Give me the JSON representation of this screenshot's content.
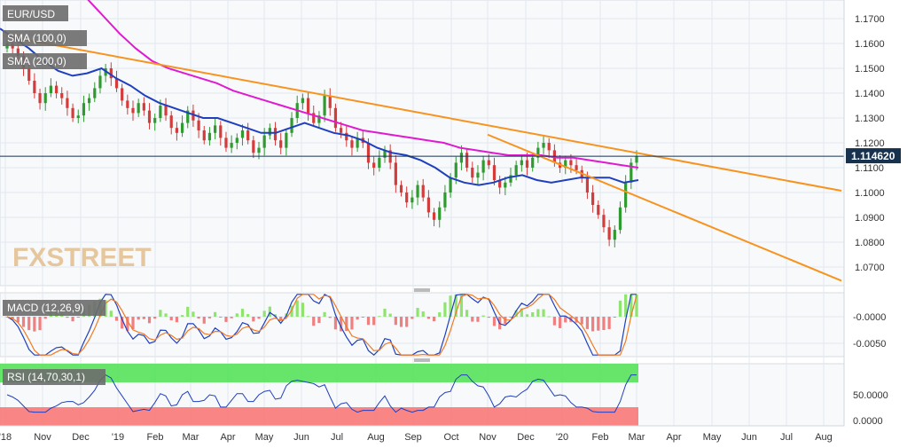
{
  "chart_data": [
    {
      "type": "candlestick",
      "symbol": "EUR/USD",
      "price_label": "1.114620",
      "y_ticks": [
        "1.1700",
        "1.1600",
        "1.1500",
        "1.1400",
        "1.1300",
        "1.1200",
        "1.1100",
        "1.1000",
        "1.0900",
        "1.0800",
        "1.0700"
      ],
      "ylim": [
        1.0625,
        1.1775
      ],
      "x_ticks": [
        "'18",
        "Nov",
        "Dec",
        "'19",
        "Feb",
        "Mar",
        "Apr",
        "May",
        "Jun",
        "Jul",
        "Aug",
        "Sep",
        "Oct",
        "Nov",
        "Dec",
        "'20",
        "Feb",
        "Mar",
        "Apr",
        "May",
        "Jun",
        "Jul",
        "Aug"
      ],
      "last_price": 1.11462,
      "overlays": [
        {
          "name": "SMA (100,0)",
          "color": "#1f3fbf",
          "values": [
            1.166,
            1.162,
            1.158,
            1.153,
            1.149,
            1.147,
            1.148,
            1.15,
            1.146,
            1.143,
            1.139,
            1.136,
            1.134,
            1.132,
            1.13,
            1.13,
            1.128,
            1.126,
            1.124,
            1.124,
            1.126,
            1.128,
            1.126,
            1.124,
            1.123,
            1.121,
            1.118,
            1.116,
            1.115,
            1.113,
            1.11,
            1.106,
            1.104,
            1.103,
            1.104,
            1.106,
            1.107,
            1.105,
            1.104,
            1.105,
            1.106,
            1.106,
            1.106,
            1.104,
            1.105
          ]
        },
        {
          "name": "SMA (200,0)",
          "color": "#e01ad0",
          "values": [
            1.185,
            1.178,
            1.171,
            1.164,
            1.158,
            1.153,
            1.15,
            1.148,
            1.146,
            1.144,
            1.141,
            1.139,
            1.137,
            1.135,
            1.133,
            1.131,
            1.129,
            1.127,
            1.125,
            1.124,
            1.123,
            1.122,
            1.121,
            1.12,
            1.118,
            1.117,
            1.116,
            1.115,
            1.115,
            1.115,
            1.114,
            1.114,
            1.113,
            1.112,
            1.111,
            1.11
          ]
        }
      ],
      "trend_lines": [
        {
          "name": "channel-upper",
          "color": "#f7931e",
          "from": [
            "'18",
            1.163
          ],
          "to": [
            "Aug",
            1.1007
          ]
        },
        {
          "name": "channel-lower",
          "color": "#f7931e",
          "from": [
            "Nov",
            1.1233
          ],
          "to": [
            "Aug",
            1.0645
          ]
        }
      ],
      "closes": [
        1.16,
        1.158,
        1.155,
        1.15,
        1.145,
        1.14,
        1.136,
        1.14,
        1.143,
        1.14,
        1.138,
        1.134,
        1.13,
        1.131,
        1.136,
        1.138,
        1.142,
        1.147,
        1.15,
        1.146,
        1.142,
        1.137,
        1.134,
        1.132,
        1.136,
        1.133,
        1.128,
        1.13,
        1.135,
        1.131,
        1.126,
        1.124,
        1.128,
        1.133,
        1.129,
        1.125,
        1.121,
        1.124,
        1.127,
        1.122,
        1.118,
        1.12,
        1.122,
        1.125,
        1.121,
        1.116,
        1.118,
        1.123,
        1.126,
        1.121,
        1.118,
        1.124,
        1.13,
        1.136,
        1.138,
        1.132,
        1.128,
        1.131,
        1.139,
        1.134,
        1.126,
        1.124,
        1.121,
        1.118,
        1.122,
        1.12,
        1.112,
        1.11,
        1.114,
        1.117,
        1.112,
        1.103,
        1.1,
        1.096,
        1.098,
        1.103,
        1.098,
        1.092,
        1.089,
        1.094,
        1.1,
        1.106,
        1.112,
        1.116,
        1.11,
        1.106,
        1.108,
        1.113,
        1.111,
        1.105,
        1.102,
        1.104,
        1.107,
        1.111,
        1.113,
        1.11,
        1.114,
        1.118,
        1.12,
        1.117,
        1.112,
        1.11,
        1.113,
        1.111,
        1.109,
        1.106,
        1.1,
        1.095,
        1.091,
        1.086,
        1.081,
        1.085,
        1.094,
        1.104,
        1.112,
        1.1146
      ]
    },
    {
      "type": "bar+line",
      "name": "MACD (12,26,9)",
      "y_ticks": [
        "-0.0000",
        "-0.0050"
      ],
      "ylim": [
        -0.0075,
        0.0045
      ],
      "series": [
        {
          "name": "MACD",
          "color": "#1f3fbf"
        },
        {
          "name": "Signal",
          "color": "#f07a22"
        },
        {
          "name": "Histogram",
          "up_color": "#8fe36f",
          "down_color": "#f07f7f"
        }
      ]
    },
    {
      "type": "line",
      "name": "RSI (14,70,30,1)",
      "y_ticks": [
        "50.0000",
        "0.0000"
      ],
      "ylim": [
        0,
        100
      ],
      "overbought": 70,
      "oversold": 30,
      "series": [
        {
          "name": "RSI",
          "color": "#1f3fbf"
        }
      ]
    }
  ],
  "watermark": "FXSTREET",
  "colors": {
    "bull": "#2f9a2f",
    "bear": "#d43c3c",
    "zone_up": "#55e25a",
    "zone_down": "#f87878",
    "price_line": "#17324f",
    "axis": "#cfd7df"
  }
}
